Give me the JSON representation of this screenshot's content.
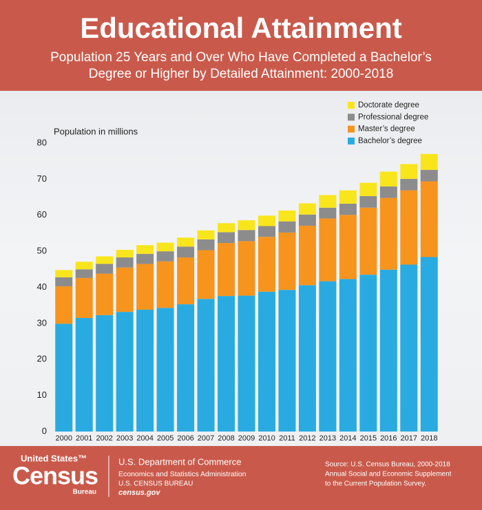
{
  "chart_data": {
    "type": "stacked-bar",
    "title": "Educational Attainment",
    "subtitle": [
      "Population 25 Years and Over Who Have Completed a Bachelor’s",
      "Degree or Higher by Detailed Attainment: 2000-2018"
    ],
    "y_label": "Population in millions",
    "categories": [
      "2000",
      "2001",
      "2002",
      "2003",
      "2004",
      "2005",
      "2006",
      "2007",
      "2008",
      "2009",
      "2010",
      "2011",
      "2012",
      "2013",
      "2014",
      "2015",
      "2016",
      "2017",
      "2018"
    ],
    "series": [
      {
        "name": "Bachelor’s degree",
        "color": "#29abe2",
        "values": [
          29.9,
          31.5,
          32.3,
          33.2,
          33.8,
          34.3,
          35.3,
          36.8,
          37.6,
          37.7,
          38.8,
          39.3,
          40.6,
          41.7,
          42.3,
          43.5,
          44.9,
          46.3,
          48.4
        ]
      },
      {
        "name": "Master’s degree",
        "color": "#f7941d",
        "values": [
          10.4,
          11.1,
          11.5,
          12.3,
          12.7,
          12.9,
          13.0,
          13.5,
          14.7,
          15.1,
          15.2,
          15.9,
          16.5,
          17.4,
          17.8,
          18.6,
          19.9,
          20.6,
          21.0
        ]
      },
      {
        "name": "Professional degree",
        "color": "#8c8c8c",
        "values": [
          2.5,
          2.4,
          2.7,
          2.8,
          2.8,
          2.8,
          3.0,
          3.0,
          3.0,
          3.1,
          3.0,
          3.1,
          3.1,
          3.0,
          3.1,
          3.2,
          3.2,
          3.2,
          3.2
        ]
      },
      {
        "name": "Doctorate degree",
        "color": "#f9e51b",
        "values": [
          2.0,
          2.1,
          2.1,
          2.1,
          2.4,
          2.4,
          2.5,
          2.5,
          2.5,
          2.7,
          2.9,
          3.0,
          3.1,
          3.5,
          3.7,
          3.7,
          4.1,
          4.1,
          4.4
        ]
      }
    ],
    "ylim": [
      0,
      80
    ],
    "yticks": [
      0,
      10,
      20,
      30,
      40,
      50,
      60,
      70,
      80
    ],
    "grid": false
  },
  "footer": {
    "logo": [
      "United States™",
      "Census",
      "Bureau"
    ],
    "agency": [
      "U.S. Department of Commerce",
      "Economics and Statistics Administration",
      "U.S. CENSUS BUREAU",
      "census.gov"
    ],
    "source": [
      "Source: U.S. Census Bureau, 2000-2018",
      "Annual Social and Economic Supplement",
      "to the Current Population Survey."
    ]
  }
}
